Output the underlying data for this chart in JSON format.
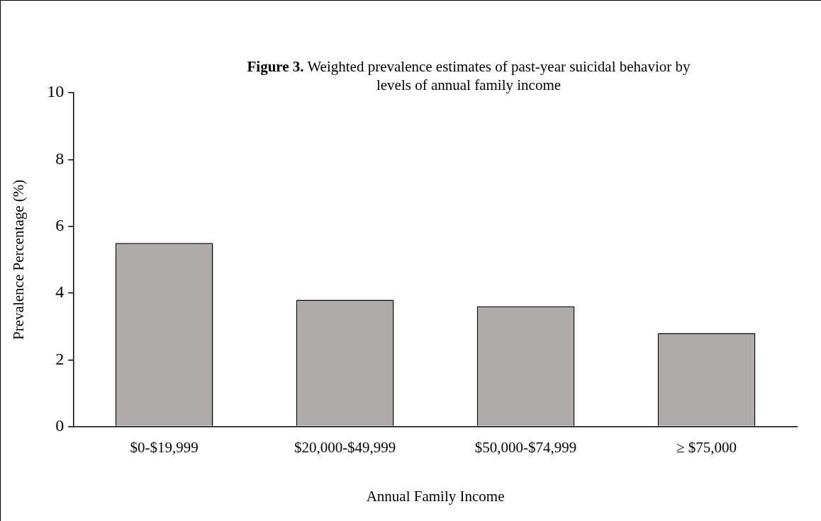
{
  "chart_data": {
    "type": "bar",
    "title": "Figure 3. Weighted prevalence estimates of past-year suicidal behavior by levels of annual family income",
    "xlabel": "Annual Family Income",
    "ylabel": "Prevalence Percentage (%)",
    "categories": [
      "$0-$19,999",
      "$20,000-$49,999",
      "$50,000-$74,999",
      "≥ $75,000"
    ],
    "values": [
      5.5,
      3.8,
      3.6,
      2.8
    ],
    "color": "#aeabaa",
    "ylim": [
      0,
      10
    ],
    "yticks": [
      0,
      2,
      4,
      6,
      8,
      10
    ]
  }
}
